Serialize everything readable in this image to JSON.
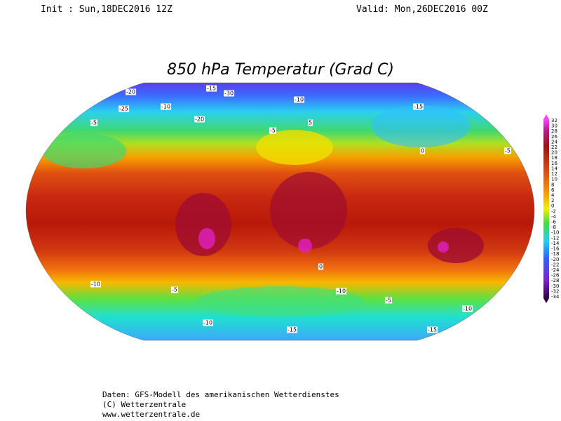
{
  "header": {
    "init": "Init : Sun,18DEC2016 12Z",
    "valid": "Valid: Mon,26DEC2016 00Z"
  },
  "title": "850 hPa Temperatur (Grad C)",
  "legend": {
    "labels": [
      32,
      30,
      28,
      26,
      24,
      22,
      20,
      18,
      16,
      14,
      12,
      10,
      8,
      6,
      4,
      2,
      0,
      -2,
      -4,
      -6,
      -8,
      -10,
      -12,
      -14,
      -16,
      -18,
      -20,
      -22,
      -24,
      -26,
      -28,
      -30,
      -32,
      -34
    ]
  },
  "contour_labels": [
    -20,
    -15,
    -25,
    -10,
    -30,
    -5,
    -20,
    -10,
    -15,
    -5,
    5,
    0,
    -5,
    -10,
    -5,
    -10,
    -15,
    -10,
    0,
    -5,
    -15,
    -10
  ],
  "footer": [
    "Daten: GFS-Modell des amerikanischen Wetterdienstes",
    "(C) Wetterzentrale",
    "www.wetterzentrale.de"
  ]
}
